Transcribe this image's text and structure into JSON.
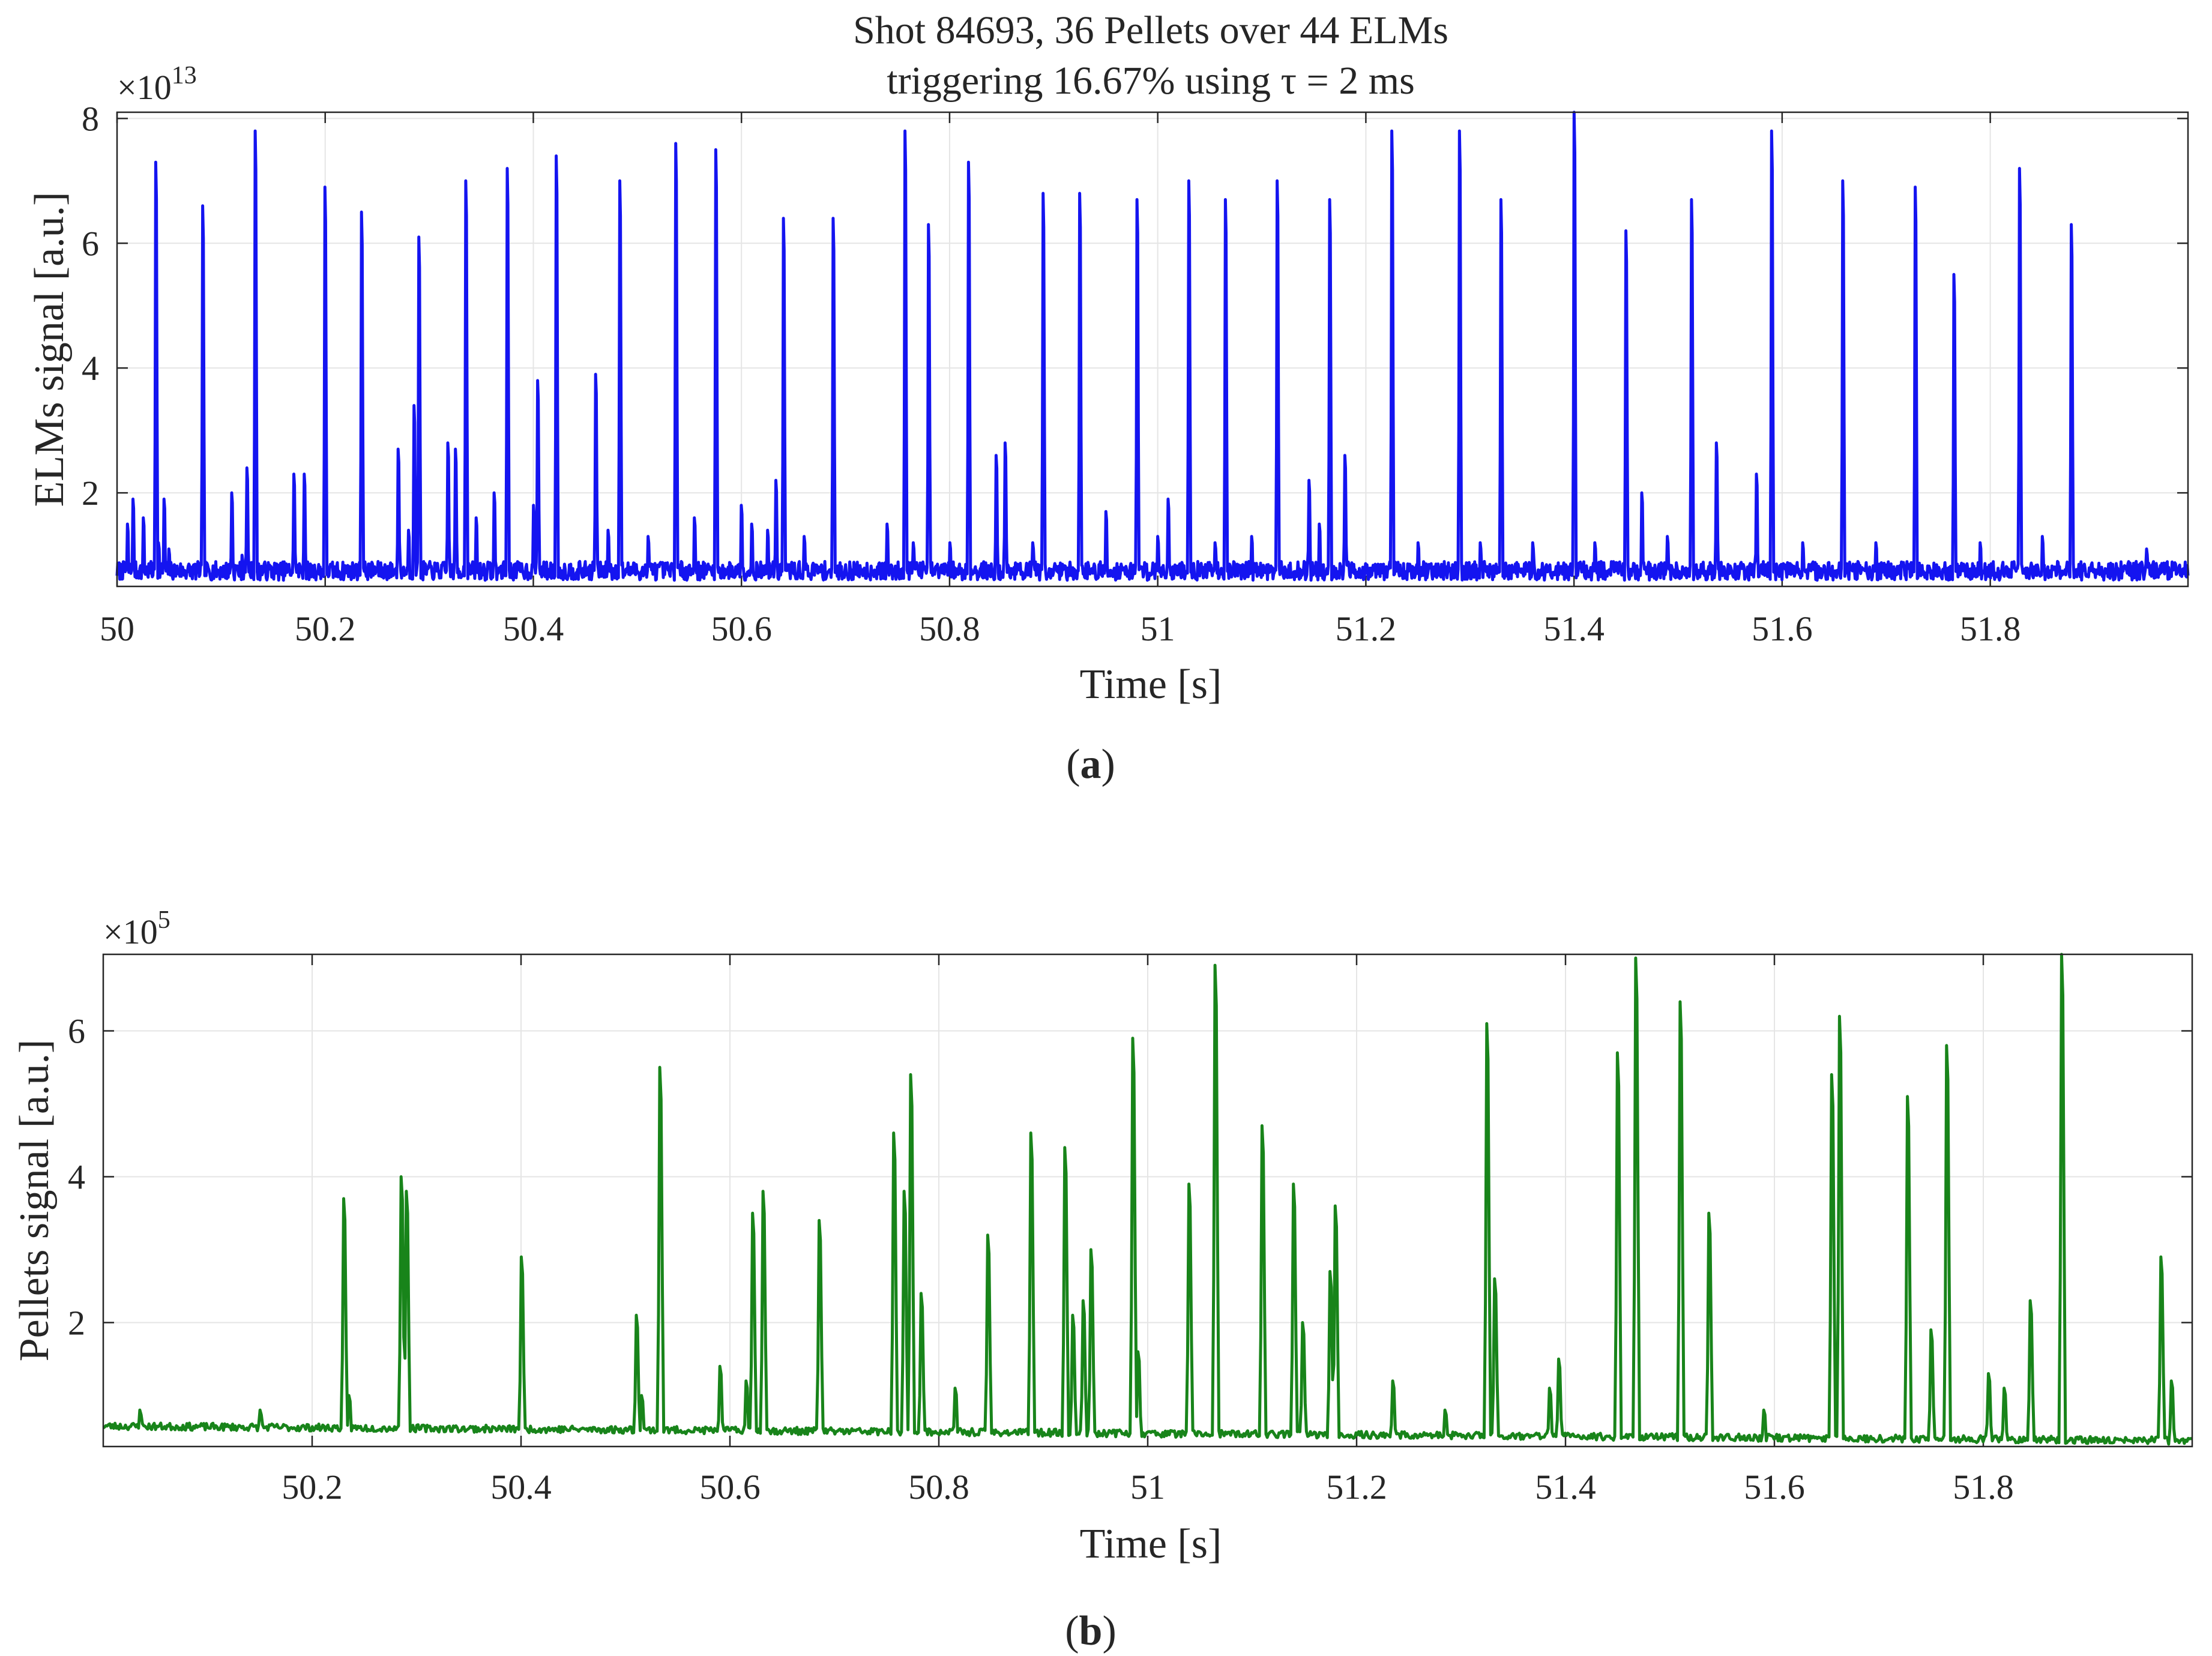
{
  "chart_data": [
    {
      "id": "elms",
      "type": "line",
      "title": [
        "Shot 84693, 36 Pellets over 44 ELMs",
        "triggering 16.67% using τ = 2 ms"
      ],
      "xlabel": "Time [s]",
      "ylabel": "ELMs signal [a.u.]",
      "exponent": "×10",
      "exponent_power": "13",
      "caption_letter": "a",
      "color": "#1414f0",
      "xlim": [
        50.0,
        51.99
      ],
      "ylim": [
        0.5,
        8.1
      ],
      "xticks": [
        50,
        50.2,
        50.4,
        50.6,
        50.8,
        51,
        51.2,
        51.4,
        51.6,
        51.8
      ],
      "xtick_labels": [
        "50",
        "50.2",
        "50.4",
        "50.6",
        "50.8",
        "51",
        "51.2",
        "51.4",
        "51.6",
        "51.8"
      ],
      "yticks": [
        2,
        4,
        6,
        8
      ],
      "ytick_labels": [
        "2",
        "4",
        "6",
        "8"
      ],
      "grid": true,
      "baseline": 0.75,
      "noise": 0.15,
      "peaks": [
        [
          50.01,
          1.5
        ],
        [
          50.015,
          1.9
        ],
        [
          50.025,
          1.6
        ],
        [
          50.037,
          7.3
        ],
        [
          50.04,
          1.2
        ],
        [
          50.045,
          1.9
        ],
        [
          50.05,
          1.1
        ],
        [
          50.082,
          6.6
        ],
        [
          50.12,
          1.0
        ],
        [
          50.11,
          2.0
        ],
        [
          50.125,
          2.4
        ],
        [
          50.133,
          7.8
        ],
        [
          50.17,
          2.3
        ],
        [
          50.18,
          2.3
        ],
        [
          50.2,
          6.9
        ],
        [
          50.235,
          6.5
        ],
        [
          50.27,
          2.7
        ],
        [
          50.28,
          1.4
        ],
        [
          50.285,
          3.4
        ],
        [
          50.29,
          6.1
        ],
        [
          50.318,
          2.8
        ],
        [
          50.325,
          2.7
        ],
        [
          50.335,
          7.0
        ],
        [
          50.345,
          1.6
        ],
        [
          50.362,
          2.0
        ],
        [
          50.375,
          7.2
        ],
        [
          50.4,
          1.8
        ],
        [
          50.404,
          3.8
        ],
        [
          50.422,
          7.4
        ],
        [
          50.46,
          3.9
        ],
        [
          50.472,
          1.4
        ],
        [
          50.483,
          7.0
        ],
        [
          50.51,
          1.3
        ],
        [
          50.537,
          7.6
        ],
        [
          50.555,
          1.6
        ],
        [
          50.575,
          7.5
        ],
        [
          50.6,
          1.8
        ],
        [
          50.61,
          1.5
        ],
        [
          50.625,
          1.4
        ],
        [
          50.633,
          2.2
        ],
        [
          50.64,
          6.4
        ],
        [
          50.66,
          1.3
        ],
        [
          50.688,
          6.4
        ],
        [
          50.74,
          1.5
        ],
        [
          50.757,
          7.8
        ],
        [
          50.765,
          1.2
        ],
        [
          50.78,
          6.3
        ],
        [
          50.8,
          1.2
        ],
        [
          50.818,
          7.3
        ],
        [
          50.845,
          2.6
        ],
        [
          50.853,
          2.8
        ],
        [
          50.88,
          1.2
        ],
        [
          50.89,
          6.8
        ],
        [
          50.925,
          6.8
        ],
        [
          50.95,
          1.7
        ],
        [
          50.98,
          6.7
        ],
        [
          51.0,
          1.3
        ],
        [
          51.01,
          1.9
        ],
        [
          51.03,
          7.0
        ],
        [
          51.055,
          1.2
        ],
        [
          51.065,
          6.7
        ],
        [
          51.09,
          1.3
        ],
        [
          51.115,
          7.0
        ],
        [
          51.145,
          2.2
        ],
        [
          51.155,
          1.5
        ],
        [
          51.165,
          6.7
        ],
        [
          51.18,
          2.6
        ],
        [
          51.225,
          7.8
        ],
        [
          51.25,
          1.2
        ],
        [
          51.29,
          7.8
        ],
        [
          51.31,
          1.2
        ],
        [
          51.33,
          6.7
        ],
        [
          51.36,
          1.2
        ],
        [
          51.4,
          8.1
        ],
        [
          51.42,
          1.2
        ],
        [
          51.45,
          6.2
        ],
        [
          51.465,
          2.0
        ],
        [
          51.49,
          1.3
        ],
        [
          51.513,
          6.7
        ],
        [
          51.537,
          2.8
        ],
        [
          51.575,
          2.3
        ],
        [
          51.59,
          7.8
        ],
        [
          51.62,
          1.2
        ],
        [
          51.658,
          7.0
        ],
        [
          51.69,
          1.2
        ],
        [
          51.728,
          6.9
        ],
        [
          51.765,
          5.5
        ],
        [
          51.79,
          1.2
        ],
        [
          51.828,
          7.2
        ],
        [
          51.85,
          1.3
        ],
        [
          51.878,
          6.3
        ],
        [
          51.95,
          1.1
        ]
      ]
    },
    {
      "id": "pellets",
      "type": "line",
      "title": [],
      "xlabel": "Time [s]",
      "ylabel": "Pellets signal [a.u.]",
      "exponent": "×10",
      "exponent_power": "5",
      "caption_letter": "b",
      "color": "#18841a",
      "xlim": [
        50.0,
        52.0
      ],
      "ylim": [
        0.3,
        7.05
      ],
      "xticks": [
        50.2,
        50.4,
        50.6,
        50.8,
        51,
        51.2,
        51.4,
        51.6,
        51.8
      ],
      "xtick_labels": [
        "50.2",
        "50.4",
        "50.6",
        "50.8",
        "51",
        "51.2",
        "51.4",
        "51.6",
        "51.8"
      ],
      "yticks": [
        2,
        4,
        6
      ],
      "ytick_labels": [
        "2",
        "4",
        "6"
      ],
      "grid": true,
      "baseline_start": 0.58,
      "baseline_end": 0.38,
      "noise": 0.05,
      "peaks": [
        [
          50.035,
          0.8
        ],
        [
          50.15,
          0.8
        ],
        [
          50.23,
          3.7
        ],
        [
          50.235,
          1.0
        ],
        [
          50.285,
          4.0
        ],
        [
          50.29,
          3.8
        ],
        [
          50.4,
          2.9
        ],
        [
          50.51,
          2.1
        ],
        [
          50.515,
          1.0
        ],
        [
          50.533,
          5.5
        ],
        [
          50.59,
          1.4
        ],
        [
          50.615,
          1.2
        ],
        [
          50.622,
          3.5
        ],
        [
          50.632,
          3.8
        ],
        [
          50.685,
          3.4
        ],
        [
          50.757,
          4.6
        ],
        [
          50.767,
          3.8
        ],
        [
          50.773,
          5.4
        ],
        [
          50.783,
          2.4
        ],
        [
          50.815,
          1.1
        ],
        [
          50.847,
          3.2
        ],
        [
          50.888,
          4.6
        ],
        [
          50.92,
          4.4
        ],
        [
          50.928,
          2.1
        ],
        [
          50.938,
          2.3
        ],
        [
          50.945,
          3.0
        ],
        [
          50.985,
          5.9
        ],
        [
          50.99,
          1.6
        ],
        [
          51.04,
          3.9
        ],
        [
          51.065,
          6.9
        ],
        [
          51.11,
          4.7
        ],
        [
          51.14,
          3.9
        ],
        [
          51.148,
          2.0
        ],
        [
          51.175,
          2.7
        ],
        [
          51.18,
          3.6
        ],
        [
          51.235,
          1.2
        ],
        [
          51.285,
          0.8
        ],
        [
          51.325,
          6.1
        ],
        [
          51.332,
          2.6
        ],
        [
          51.385,
          1.1
        ],
        [
          51.393,
          1.5
        ],
        [
          51.45,
          5.7
        ],
        [
          51.467,
          7.0
        ],
        [
          51.51,
          6.4
        ],
        [
          51.537,
          3.5
        ],
        [
          51.59,
          0.8
        ],
        [
          51.655,
          5.4
        ],
        [
          51.662,
          6.2
        ],
        [
          51.727,
          5.1
        ],
        [
          51.75,
          1.9
        ],
        [
          51.765,
          5.8
        ],
        [
          51.805,
          1.3
        ],
        [
          51.82,
          1.1
        ],
        [
          51.845,
          2.3
        ],
        [
          51.875,
          7.05
        ],
        [
          51.97,
          2.9
        ],
        [
          51.98,
          1.2
        ]
      ]
    }
  ]
}
